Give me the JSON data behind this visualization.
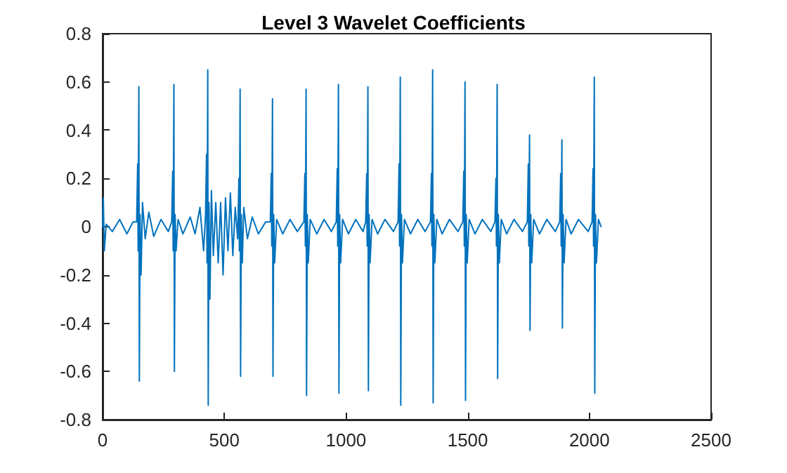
{
  "chart_data": {
    "type": "line",
    "title": "Level 3 Wavelet Coefficients",
    "x": [
      0,
      3,
      7,
      15,
      40,
      70,
      100,
      125,
      140,
      144,
      146,
      149,
      151,
      154,
      158,
      164,
      175,
      190,
      210,
      240,
      270,
      284,
      288,
      290,
      293,
      295,
      298,
      302,
      310,
      330,
      360,
      380,
      400,
      415,
      423,
      427,
      429,
      432,
      434,
      437,
      441,
      447,
      455,
      465,
      475,
      485,
      495,
      505,
      515,
      525,
      535,
      545,
      555,
      560,
      562,
      565,
      567,
      570,
      574,
      580,
      595,
      615,
      640,
      670,
      689,
      693,
      695,
      698,
      700,
      703,
      707,
      715,
      740,
      770,
      800,
      827,
      831,
      833,
      836,
      838,
      841,
      845,
      853,
      880,
      910,
      940,
      960,
      964,
      966,
      969,
      971,
      974,
      978,
      986,
      1010,
      1040,
      1070,
      1081,
      1085,
      1087,
      1090,
      1092,
      1095,
      1099,
      1107,
      1130,
      1160,
      1195,
      1214,
      1218,
      1220,
      1223,
      1225,
      1228,
      1232,
      1240,
      1265,
      1295,
      1325,
      1347,
      1351,
      1353,
      1356,
      1358,
      1361,
      1365,
      1373,
      1395,
      1425,
      1460,
      1480,
      1484,
      1486,
      1489,
      1491,
      1494,
      1498,
      1506,
      1530,
      1560,
      1595,
      1612,
      1616,
      1618,
      1621,
      1623,
      1626,
      1630,
      1638,
      1660,
      1690,
      1725,
      1745,
      1749,
      1751,
      1754,
      1756,
      1759,
      1763,
      1771,
      1795,
      1825,
      1860,
      1878,
      1882,
      1884,
      1887,
      1889,
      1892,
      1896,
      1904,
      1925,
      1955,
      1995,
      2011,
      2015,
      2017,
      2020,
      2022,
      2025,
      2029,
      2037,
      2048
    ],
    "series": [
      {
        "color": "#0072bd",
        "values": [
          0,
          0.12,
          -0.1,
          0.01,
          -0.02,
          0.03,
          -0.03,
          0.02,
          0.02,
          0.26,
          -0.1,
          0.58,
          -0.64,
          0.05,
          -0.2,
          0.1,
          -0.05,
          0.06,
          -0.04,
          0.03,
          -0.02,
          0.02,
          0.23,
          -0.1,
          0.59,
          -0.6,
          0.05,
          -0.1,
          0.03,
          -0.03,
          0.04,
          -0.03,
          0.08,
          -0.1,
          0.05,
          0.3,
          -0.15,
          0.65,
          -0.74,
          0.1,
          -0.3,
          0.15,
          -0.12,
          0.1,
          -0.15,
          0.1,
          -0.2,
          0.12,
          -0.1,
          0.14,
          -0.12,
          0.08,
          -0.05,
          0.2,
          -0.1,
          0.57,
          -0.62,
          0.05,
          -0.15,
          0.08,
          -0.05,
          0.04,
          -0.03,
          0.02,
          0.02,
          0.22,
          -0.08,
          0.53,
          -0.62,
          0.05,
          -0.15,
          0.03,
          -0.03,
          0.03,
          -0.02,
          0.02,
          0.22,
          -0.08,
          0.57,
          -0.7,
          0.05,
          -0.15,
          0.03,
          -0.03,
          0.03,
          -0.02,
          0.02,
          0.24,
          -0.08,
          0.59,
          -0.69,
          0.05,
          -0.15,
          0.03,
          -0.03,
          0.03,
          -0.02,
          0.02,
          0.22,
          -0.08,
          0.58,
          -0.68,
          0.05,
          -0.15,
          0.03,
          -0.03,
          0.03,
          -0.02,
          0.02,
          0.26,
          -0.08,
          0.62,
          -0.74,
          0.05,
          -0.15,
          0.03,
          -0.03,
          0.03,
          -0.02,
          0.02,
          0.22,
          -0.08,
          0.65,
          -0.73,
          0.05,
          -0.15,
          0.03,
          -0.03,
          0.03,
          -0.02,
          0.02,
          0.23,
          -0.08,
          0.6,
          -0.72,
          0.05,
          -0.15,
          0.03,
          -0.03,
          0.03,
          -0.02,
          0.02,
          0.2,
          -0.08,
          0.59,
          -0.63,
          0.05,
          -0.15,
          0.03,
          -0.03,
          0.03,
          -0.02,
          0.02,
          0.26,
          -0.08,
          0.38,
          -0.43,
          0.05,
          -0.15,
          0.03,
          -0.03,
          0.03,
          -0.02,
          0.02,
          0.22,
          -0.08,
          0.36,
          -0.42,
          0.05,
          -0.15,
          0.03,
          -0.03,
          0.03,
          -0.02,
          0.02,
          0.24,
          -0.08,
          0.62,
          -0.69,
          0.05,
          -0.15,
          0.03,
          0
        ]
      }
    ],
    "xlim": [
      0,
      2500
    ],
    "xticks": [
      0,
      500,
      1000,
      1500,
      2000,
      2500
    ],
    "ylim": [
      -0.8,
      0.8
    ],
    "yticks": [
      -0.8,
      -0.6,
      -0.4,
      -0.2,
      0,
      0.2,
      0.4,
      0.6,
      0.8
    ],
    "grid": false,
    "legend": false,
    "marker": "none",
    "line_style": "solid"
  }
}
